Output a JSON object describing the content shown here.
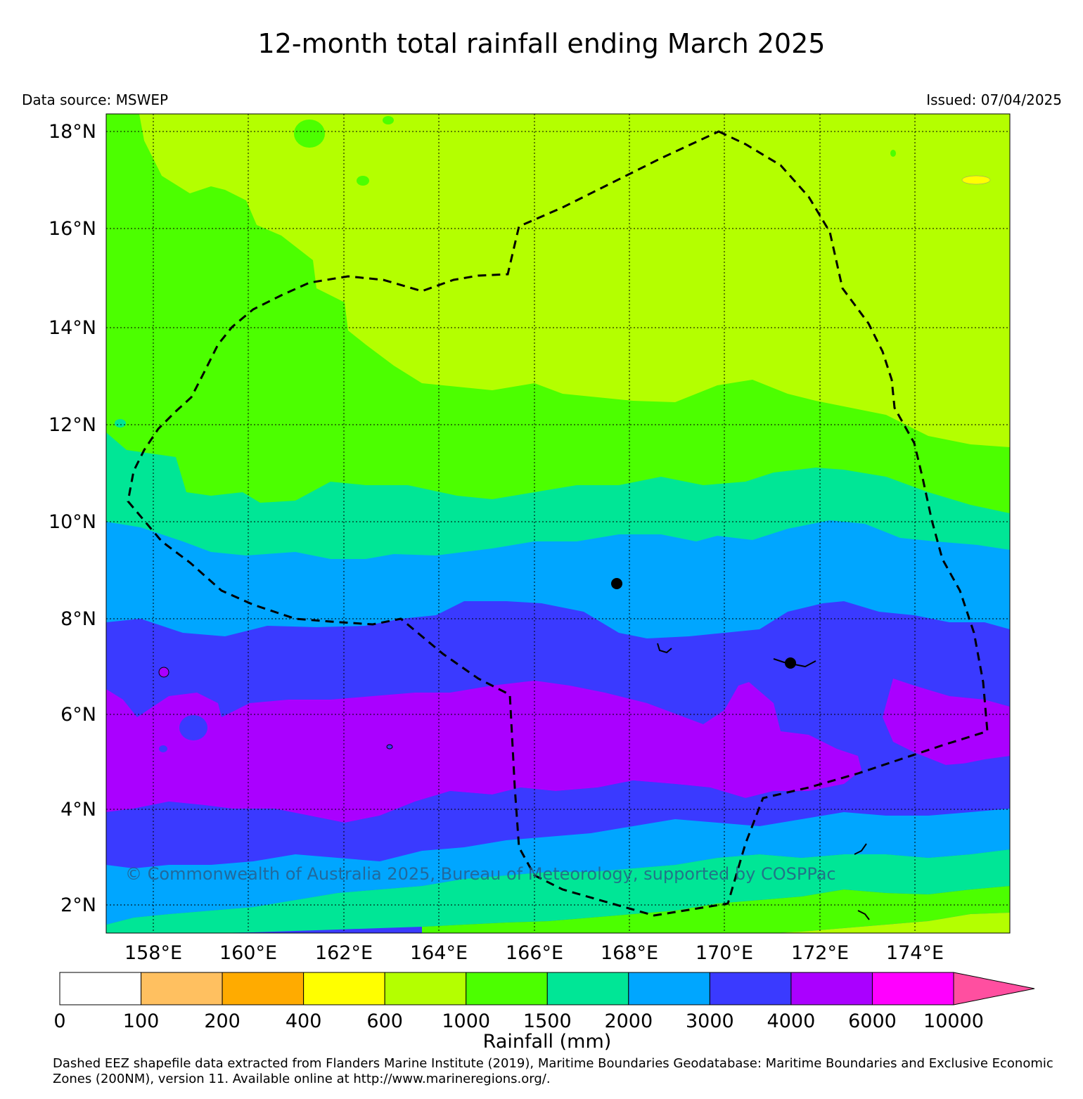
{
  "title": "12-month total rainfall ending March 2025",
  "data_source": "Data source: MSWEP",
  "issued": "Issued: 07/04/2025",
  "copyright": "© Commonwealth of Australia 2025, Bureau of Meteorology, supported by COSPPac",
  "footnote": "Dashed EEZ shapefile data extracted from Flanders Marine Institute (2019), Maritime Boundaries Geodatabase: Maritime Boundaries and Exclusive Economic Zones (200NM), version 11. Available online at http://www.marineregions.org/.",
  "map": {
    "lon_range": [
      157,
      176
    ],
    "lat_range": [
      1.4,
      18.3
    ],
    "lat_ticks": [
      "18°N",
      "16°N",
      "14°N",
      "12°N",
      "10°N",
      "8°N",
      "6°N",
      "4°N",
      "2°N"
    ],
    "lon_ticks": [
      "158°E",
      "160°E",
      "162°E",
      "164°E",
      "166°E",
      "168°E",
      "170°E",
      "172°E",
      "174°E"
    ],
    "gridlines": true,
    "eez_boundary": "dashed",
    "island_markers": 2
  },
  "colorbar": {
    "label": "Rainfall (mm)",
    "tick_labels": [
      "0",
      "100",
      "200",
      "400",
      "600",
      "1000",
      "1500",
      "2000",
      "3000",
      "4000",
      "6000",
      "10000"
    ],
    "colors": [
      "#ffffff",
      "#ffc060",
      "#ffab00",
      "#ffff00",
      "#b4ff00",
      "#4cff00",
      "#00e696",
      "#00a6ff",
      "#3a3aff",
      "#aa00ff",
      "#ff00ff"
    ],
    "extend_color": "#ff4fa0"
  }
}
